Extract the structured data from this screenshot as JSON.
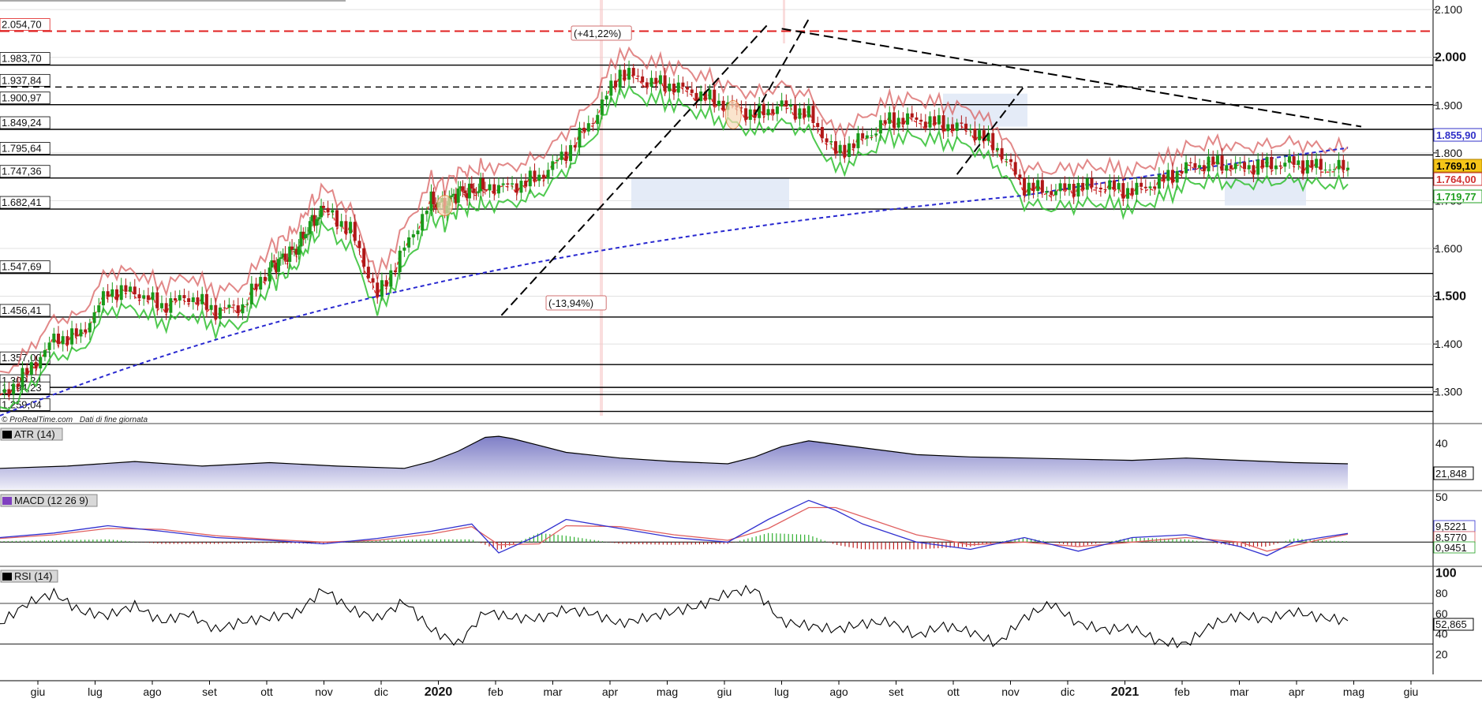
{
  "source": {
    "credit": "© ProRealTime.com",
    "note": "Dati di fine giornata"
  },
  "chart_data": [
    {
      "type": "candlestick",
      "panel": "price",
      "ylim": [
        1250,
        2120
      ],
      "y_ticks": [
        "2.100",
        "2.000",
        "1.900",
        "1.800",
        "1.700",
        "1.600",
        "1.500",
        "1.400",
        "1.300"
      ],
      "y_tick_values": [
        2100,
        2000,
        1900,
        1800,
        1700,
        1600,
        1500,
        1400,
        1300
      ],
      "y_bold_ticks": [
        "2.000",
        "1.500"
      ],
      "x_months": [
        "giu",
        "lug",
        "ago",
        "set",
        "ott",
        "nov",
        "dic",
        "2020",
        "feb",
        "mar",
        "apr",
        "mag",
        "giu",
        "lug",
        "ago",
        "set",
        "ott",
        "nov",
        "dic",
        "2021",
        "feb",
        "mar",
        "apr",
        "mag",
        "giu"
      ],
      "x_bold_months": [
        "2020",
        "2021"
      ],
      "horizontal_levels": [
        {
          "label": "2.054,70",
          "value": 2054.7,
          "style": "red-dashed"
        },
        {
          "label": "1.983,70",
          "value": 1983.7,
          "style": "black"
        },
        {
          "label": "1.937,84",
          "value": 1937.84,
          "style": "black-dashed"
        },
        {
          "label": "1.900,97",
          "value": 1900.97,
          "style": "black"
        },
        {
          "label": "1.849,24",
          "value": 1849.24,
          "style": "black"
        },
        {
          "label": "1.795,64",
          "value": 1795.64,
          "style": "black"
        },
        {
          "label": "1.747,36",
          "value": 1747.36,
          "style": "black"
        },
        {
          "label": "1.682,41",
          "value": 1682.41,
          "style": "black"
        },
        {
          "label": "1.547,69",
          "value": 1547.69,
          "style": "black"
        },
        {
          "label": "1.456,41",
          "value": 1456.41,
          "style": "black"
        },
        {
          "label": "1.357,00",
          "value": 1357.0,
          "style": "black"
        },
        {
          "label": "1.309,24",
          "value": 1309.24,
          "style": "black"
        },
        {
          "label": "1.294,23",
          "value": 1294.23,
          "style": "black"
        },
        {
          "label": "1.259,04",
          "value": 1259.04,
          "style": "black"
        }
      ],
      "price_badges": [
        {
          "label": "1.855,90",
          "value": 1855.9,
          "color": "#3030c8",
          "bg": "#ffffff"
        },
        {
          "label": "1.769,10",
          "value": 1769.1,
          "color": "#000000",
          "bg": "#f5c518"
        },
        {
          "label": "1.764,00",
          "value": 1764.0,
          "color": "#d03030",
          "bg": "#ffffff"
        },
        {
          "label": "1.719,77",
          "value": 1719.77,
          "color": "#20a020",
          "bg": "#ffffff"
        }
      ],
      "annotations": [
        {
          "text": "(+41,22%)"
        },
        {
          "text": "(-13,94%)"
        }
      ],
      "series": [
        {
          "name": "close",
          "x": [
            0,
            10,
            20,
            30,
            40,
            50,
            60,
            70,
            80,
            90,
            100,
            105,
            110,
            115,
            120,
            130,
            140,
            150,
            160,
            165,
            170,
            175,
            180,
            190,
            200,
            210,
            220,
            230,
            240,
            250,
            260,
            270,
            280,
            290,
            300,
            310,
            320,
            330,
            340,
            350,
            360,
            370,
            380,
            390,
            400,
            410,
            420,
            430,
            440,
            450,
            460,
            470,
            480,
            490,
            500
          ],
          "values": [
            1290,
            1340,
            1410,
            1420,
            1510,
            1510,
            1480,
            1500,
            1470,
            1480,
            1560,
            1580,
            1600,
            1650,
            1680,
            1640,
            1500,
            1600,
            1700,
            1690,
            1720,
            1720,
            1730,
            1730,
            1750,
            1800,
            1870,
            1970,
            1950,
            1940,
            1920,
            1900,
            1880,
            1900,
            1880,
            1800,
            1830,
            1870,
            1870,
            1860,
            1850,
            1810,
            1730,
            1720,
            1730,
            1730,
            1720,
            1740,
            1770,
            1780,
            1770,
            1775,
            1780,
            1770,
            1769
          ]
        },
        {
          "name": "sma200",
          "color": "#3030c8"
        },
        {
          "name": "supertrend-red",
          "color": "#d04040"
        },
        {
          "name": "supertrend-green",
          "color": "#20b020"
        }
      ]
    },
    {
      "type": "area",
      "panel": "ATR (14)",
      "title": "ATR (14)",
      "ylim": [
        0,
        55
      ],
      "y_ticks": [
        "40"
      ],
      "y_tick_values": [
        40
      ],
      "last_value": "21,848",
      "x": [
        0,
        25,
        50,
        75,
        100,
        125,
        150,
        160,
        170,
        180,
        185,
        190,
        200,
        210,
        230,
        250,
        270,
        280,
        290,
        300,
        320,
        340,
        360,
        380,
        400,
        420,
        440,
        460,
        480,
        500
      ],
      "values": [
        18,
        20,
        24,
        20,
        23,
        20,
        18,
        24,
        33,
        45,
        46,
        44,
        38,
        32,
        27,
        24,
        22,
        28,
        37,
        42,
        36,
        30,
        28,
        27,
        26,
        25,
        27,
        25,
        23,
        22
      ]
    },
    {
      "type": "line",
      "panel": "MACD (12 26 9)",
      "title": "MACD (12 26 9)",
      "ylim": [
        -25,
        55
      ],
      "y_ticks": [
        "50"
      ],
      "y_tick_values": [
        50
      ],
      "badges": [
        "9,5221",
        "8,5770",
        "0,9451"
      ],
      "series": [
        {
          "name": "MACD",
          "color": "#3030d0",
          "x": [
            0,
            20,
            40,
            60,
            80,
            100,
            120,
            140,
            160,
            175,
            185,
            200,
            210,
            230,
            250,
            270,
            285,
            300,
            310,
            320,
            340,
            360,
            380,
            400,
            420,
            440,
            460,
            470,
            480,
            490,
            500
          ],
          "values": [
            5,
            10,
            18,
            12,
            5,
            2,
            -2,
            4,
            12,
            20,
            -12,
            8,
            25,
            15,
            5,
            0,
            25,
            46,
            35,
            20,
            0,
            -8,
            5,
            -10,
            5,
            8,
            -5,
            -15,
            0,
            5,
            9.5
          ]
        },
        {
          "name": "Signal",
          "color": "#e06060",
          "x": [
            0,
            20,
            40,
            60,
            80,
            100,
            120,
            140,
            160,
            175,
            185,
            200,
            210,
            230,
            250,
            270,
            285,
            300,
            310,
            320,
            340,
            360,
            380,
            400,
            420,
            440,
            460,
            470,
            480,
            490,
            500
          ],
          "values": [
            4,
            8,
            15,
            14,
            7,
            3,
            0,
            2,
            9,
            17,
            -3,
            -2,
            18,
            17,
            8,
            2,
            15,
            38,
            38,
            28,
            8,
            -3,
            0,
            -5,
            0,
            5,
            0,
            -10,
            -4,
            3,
            8.6
          ]
        }
      ]
    },
    {
      "type": "line",
      "panel": "RSI (14)",
      "title": "RSI (14)",
      "ylim": [
        0,
        105
      ],
      "y_ticks": [
        "100",
        "80",
        "60",
        "40",
        "20"
      ],
      "y_tick_values": [
        100,
        80,
        60,
        40,
        20
      ],
      "y_bold_ticks": [
        "100"
      ],
      "last_value": "52,865",
      "series": [
        {
          "name": "RSI",
          "color": "#000000",
          "x": [
            0,
            10,
            20,
            30,
            40,
            50,
            60,
            70,
            80,
            90,
            100,
            110,
            120,
            130,
            140,
            150,
            160,
            170,
            180,
            190,
            200,
            210,
            220,
            230,
            240,
            250,
            260,
            270,
            280,
            290,
            300,
            310,
            320,
            330,
            340,
            350,
            360,
            370,
            380,
            390,
            400,
            410,
            420,
            430,
            440,
            450,
            460,
            470,
            480,
            490,
            500
          ],
          "values": [
            50,
            70,
            80,
            62,
            58,
            68,
            52,
            60,
            44,
            52,
            56,
            60,
            84,
            64,
            55,
            72,
            44,
            30,
            62,
            56,
            55,
            64,
            60,
            50,
            56,
            62,
            68,
            80,
            84,
            52,
            48,
            44,
            50,
            52,
            38,
            48,
            42,
            30,
            56,
            70,
            50,
            44,
            46,
            32,
            30,
            50,
            58,
            54,
            62,
            56,
            53
          ]
        }
      ]
    }
  ]
}
